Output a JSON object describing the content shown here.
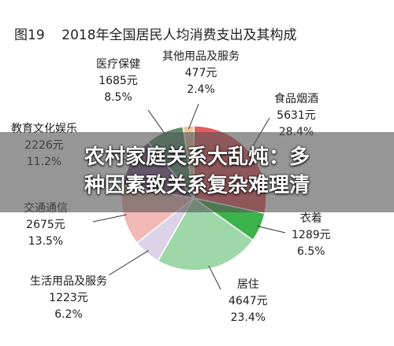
{
  "chart_data": {
    "type": "pie",
    "title": "图19    2018年全国居民人均消费支出及其构成",
    "slices": [
      {
        "name": "食品烟酒",
        "value": 5631,
        "value_label": "5631元",
        "percent_label": "28.4%",
        "color": "#e95b63"
      },
      {
        "name": "衣着",
        "value": 1289,
        "value_label": "1289元",
        "percent_label": "6.5%",
        "color": "#3cb34a"
      },
      {
        "name": "居住",
        "value": 4647,
        "value_label": "4647元",
        "percent_label": "23.4%",
        "color": "#9ed7a8"
      },
      {
        "name": "生活用品及服务",
        "value": 1223,
        "value_label": "1223元",
        "percent_label": "6.2%",
        "color": "#dcd3e8"
      },
      {
        "name": "交通通信",
        "value": 2675,
        "value_label": "2675元",
        "percent_label": "13.5%",
        "color": "#f2b8b3"
      },
      {
        "name": "教育文化娱乐",
        "value": 2226,
        "value_label": "2226元",
        "percent_label": "11.2%",
        "color": "#7b5a8f"
      },
      {
        "name": "医疗保健",
        "value": 1685,
        "value_label": "1685元",
        "percent_label": "8.5%",
        "color": "#5e8f6e"
      },
      {
        "name": "其他用品及服务",
        "value": 477,
        "value_label": "477元",
        "percent_label": "2.4%",
        "color": "#f0c89a"
      }
    ]
  },
  "banner": {
    "line1": "农村家庭关系大乱炖：多",
    "line2": "种因素致关系复杂难理清"
  }
}
